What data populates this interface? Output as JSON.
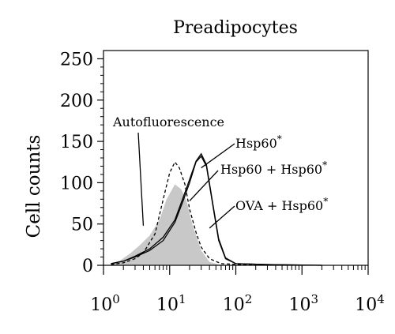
{
  "chart_data": {
    "type": "area",
    "title": "Preadipocytes",
    "xlabel": "",
    "ylabel": "Cell counts",
    "x_scale": "log10",
    "xlim": [
      1,
      10000
    ],
    "ylim": [
      0,
      260
    ],
    "x_ticks": [
      {
        "base": "10",
        "exp": "0",
        "value": 1
      },
      {
        "base": "10",
        "exp": "1",
        "value": 10
      },
      {
        "base": "10",
        "exp": "2",
        "value": 100
      },
      {
        "base": "10",
        "exp": "3",
        "value": 1000
      },
      {
        "base": "10",
        "exp": "4",
        "value": 10000
      }
    ],
    "y_ticks": [
      {
        "label": "0",
        "value": 0
      },
      {
        "label": "50",
        "value": 50
      },
      {
        "label": "100",
        "value": 100
      },
      {
        "label": "150",
        "value": 150
      },
      {
        "label": "200",
        "value": 200
      },
      {
        "label": "250",
        "value": 250
      }
    ],
    "grid": false,
    "series": [
      {
        "name": "Autofluorescence",
        "style": "filled",
        "color": "#c8c8c8",
        "points": [
          [
            1.3,
            2
          ],
          [
            1.8,
            6
          ],
          [
            2.5,
            14
          ],
          [
            3.5,
            24
          ],
          [
            5,
            36
          ],
          [
            7,
            55
          ],
          [
            9,
            80
          ],
          [
            12,
            98
          ],
          [
            15,
            92
          ],
          [
            18,
            78
          ],
          [
            22,
            50
          ],
          [
            30,
            18
          ],
          [
            40,
            4
          ],
          [
            55,
            1
          ],
          [
            100,
            0
          ]
        ]
      },
      {
        "name": "Hsp60*",
        "style": "solid",
        "color": "#000000",
        "points": [
          [
            1.3,
            2
          ],
          [
            2,
            5
          ],
          [
            3,
            10
          ],
          [
            5,
            18
          ],
          [
            8,
            30
          ],
          [
            12,
            52
          ],
          [
            16,
            78
          ],
          [
            20,
            100
          ],
          [
            25,
            125
          ],
          [
            30,
            132
          ],
          [
            36,
            120
          ],
          [
            45,
            72
          ],
          [
            55,
            30
          ],
          [
            70,
            8
          ],
          [
            100,
            2
          ],
          [
            300,
            1
          ],
          [
            2000,
            0
          ]
        ]
      },
      {
        "name": "Hsp60 + Hsp60*",
        "style": "solid",
        "color": "#000000",
        "points": [
          [
            1.3,
            2
          ],
          [
            2,
            5
          ],
          [
            3,
            11
          ],
          [
            5,
            20
          ],
          [
            8,
            34
          ],
          [
            12,
            55
          ],
          [
            16,
            82
          ],
          [
            20,
            104
          ],
          [
            25,
            126
          ],
          [
            30,
            135
          ],
          [
            36,
            122
          ],
          [
            45,
            74
          ],
          [
            55,
            32
          ],
          [
            70,
            9
          ],
          [
            100,
            2
          ],
          [
            300,
            1
          ],
          [
            2000,
            0
          ]
        ]
      },
      {
        "name": "OVA + Hsp60*",
        "style": "dashed",
        "color": "#000000",
        "points": [
          [
            1.3,
            1
          ],
          [
            2,
            3
          ],
          [
            3,
            8
          ],
          [
            4,
            15
          ],
          [
            6,
            38
          ],
          [
            8,
            80
          ],
          [
            10,
            112
          ],
          [
            12,
            125
          ],
          [
            14,
            118
          ],
          [
            17,
            98
          ],
          [
            20,
            68
          ],
          [
            25,
            40
          ],
          [
            30,
            22
          ],
          [
            40,
            8
          ],
          [
            60,
            2
          ],
          [
            200,
            0
          ]
        ]
      }
    ],
    "annotations": [
      {
        "text": "Autofluorescence",
        "series": "Autofluorescence",
        "target": [
          4,
          48
        ]
      },
      {
        "text": "Hsp60",
        "sup": "*",
        "series": "Hsp60*",
        "target": [
          30,
          118
        ]
      },
      {
        "text": "Hsp60 + Hsp60",
        "sup": "*",
        "series": "Hsp60 + Hsp60*",
        "target": [
          20,
          78
        ]
      },
      {
        "text": "OVA + Hsp60",
        "sup": "*",
        "series": "OVA + Hsp60*",
        "target": [
          40,
          45
        ]
      }
    ]
  }
}
